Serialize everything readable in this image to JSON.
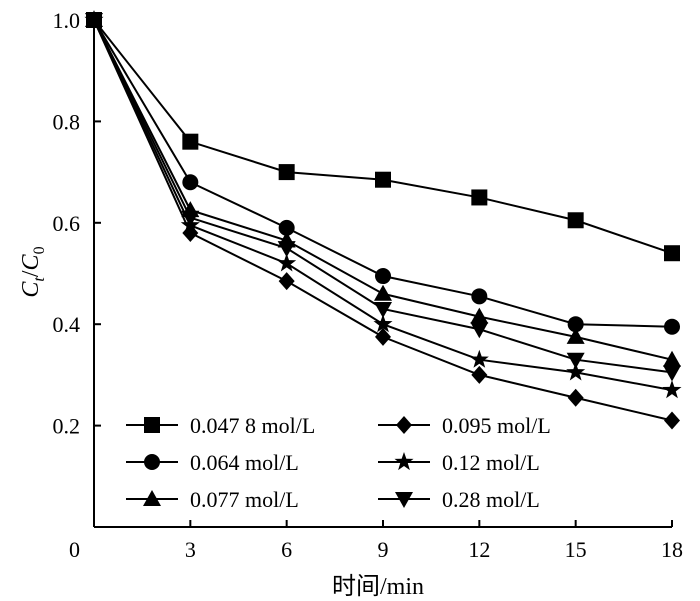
{
  "chart_data": {
    "type": "line",
    "xlabel": "时间/min",
    "ylabel_main": "C",
    "ylabel_sub_t": "t",
    "ylabel_slash": "/",
    "ylabel_sub_0": "0",
    "xlim": [
      0,
      18
    ],
    "ylim": [
      0,
      1.0
    ],
    "x_ticks": [
      0,
      3,
      6,
      9,
      12,
      15,
      18
    ],
    "x_tick_labels": [
      "0",
      "3",
      "6",
      "9",
      "12",
      "15",
      "18"
    ],
    "y_ticks": [
      0.2,
      0.4,
      0.6,
      0.8,
      1.0
    ],
    "y_tick_labels": [
      "0.2",
      "0.4",
      "0.6",
      "0.8",
      "1.0"
    ],
    "origin_label": "0",
    "grid": false,
    "legend_position": "bottom-left",
    "x": [
      0,
      3,
      6,
      9,
      12,
      15,
      18
    ],
    "series": [
      {
        "name": "0.047 8 mol/L",
        "marker": "square",
        "values": [
          1.0,
          0.76,
          0.7,
          0.685,
          0.65,
          0.605,
          0.54
        ]
      },
      {
        "name": "0.064 mol/L",
        "marker": "circle",
        "values": [
          1.0,
          0.68,
          0.59,
          0.495,
          0.455,
          0.4,
          0.395
        ]
      },
      {
        "name": "0.077 mol/L",
        "marker": "triangle-up",
        "values": [
          1.0,
          0.625,
          0.565,
          0.46,
          0.415,
          0.375,
          0.33
        ]
      },
      {
        "name": "0.095 mol/L",
        "marker": "diamond",
        "values": [
          1.0,
          0.58,
          0.485,
          0.375,
          0.3,
          0.255,
          0.21
        ]
      },
      {
        "name": "0.12 mol/L",
        "marker": "star",
        "values": [
          1.0,
          0.595,
          0.52,
          0.4,
          0.33,
          0.305,
          0.27
        ]
      },
      {
        "name": "0.28 mol/L",
        "marker": "triangle-down",
        "values": [
          1.0,
          0.61,
          0.55,
          0.43,
          0.39,
          0.33,
          0.305
        ]
      }
    ]
  }
}
